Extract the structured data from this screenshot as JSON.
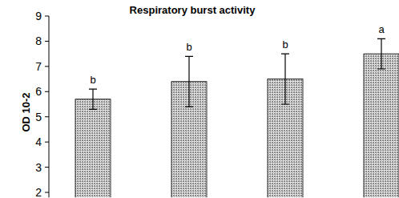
{
  "chart_data": {
    "type": "bar",
    "title": "Respiratory burst activity",
    "y_label": "OD 10-2",
    "categories": [
      null,
      null,
      null,
      null
    ],
    "values": [
      5.7,
      6.4,
      6.5,
      7.5
    ],
    "errors": [
      0.4,
      1.0,
      1.0,
      0.6
    ],
    "annotations": [
      "b",
      "b",
      "b",
      "a"
    ],
    "color": "#8c8c8c",
    "ylim": [
      1.8,
      9
    ],
    "yticks": [
      2,
      3,
      4,
      5,
      6,
      7,
      8,
      9
    ],
    "grid": false
  }
}
